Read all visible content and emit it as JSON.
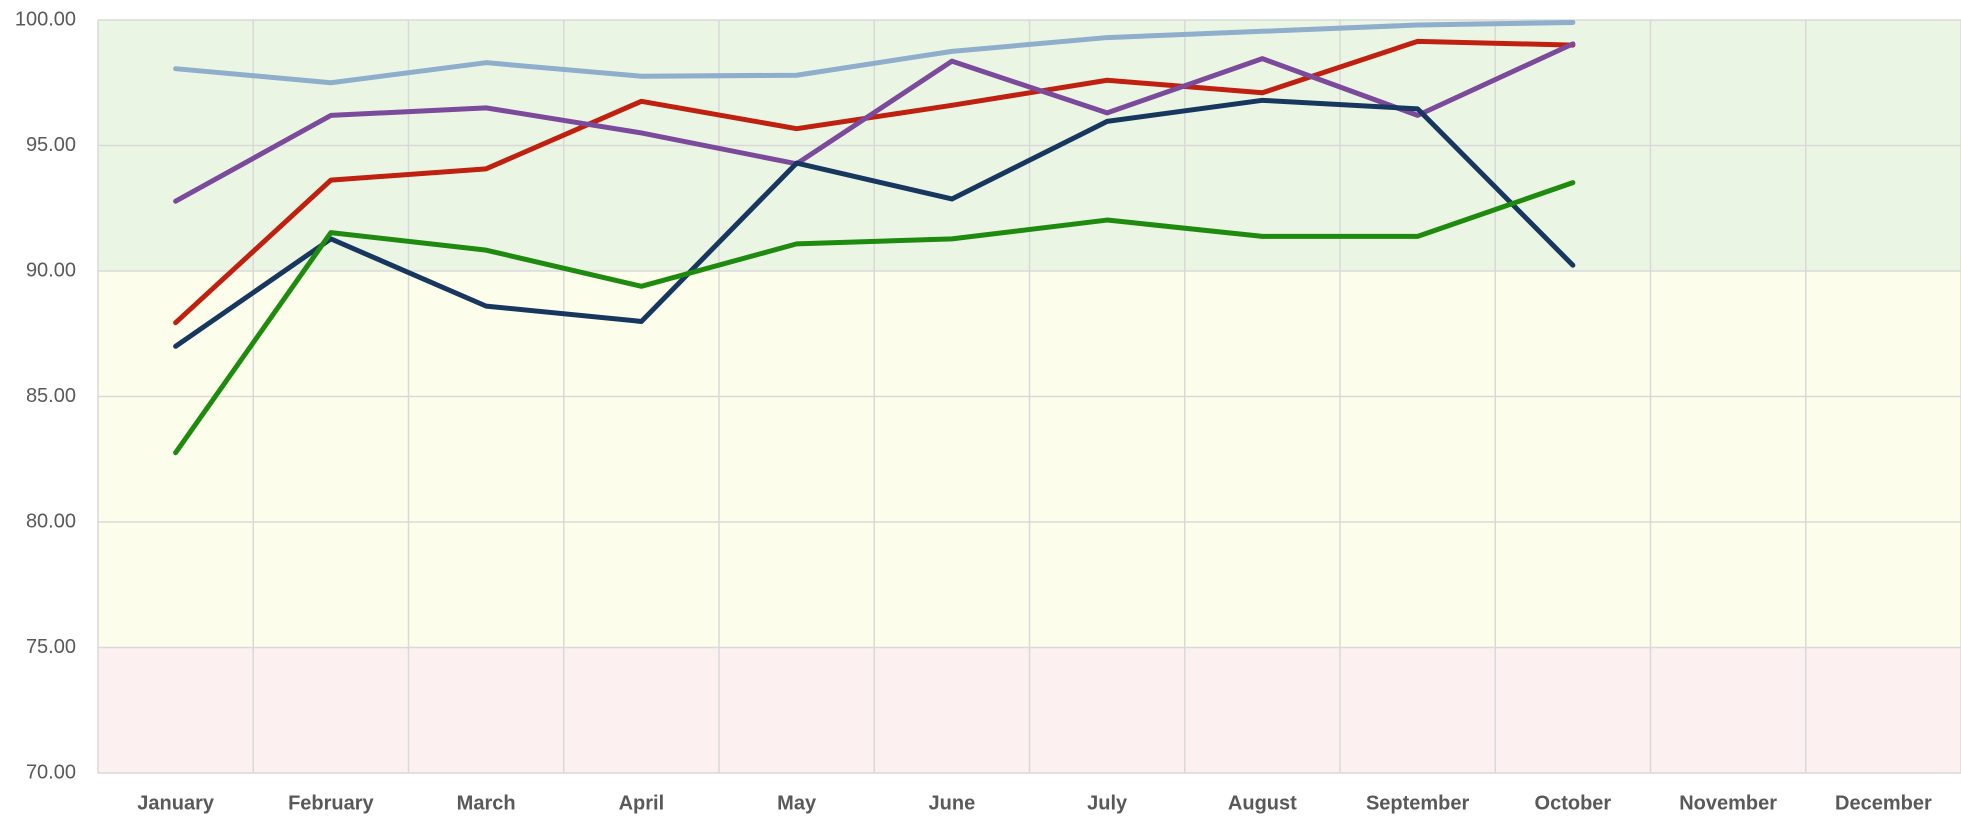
{
  "chart_data": {
    "type": "line",
    "categories": [
      "January",
      "February",
      "March",
      "April",
      "May",
      "June",
      "July",
      "August",
      "September",
      "October",
      "November",
      "December"
    ],
    "series": [
      {
        "color": "#8eaecb",
        "values": [
          98.06,
          97.5,
          98.3,
          97.76,
          97.8,
          98.75,
          99.3,
          99.55,
          99.8,
          99.9,
          null,
          null
        ]
      },
      {
        "color": "#c0200f",
        "values": [
          87.94,
          93.62,
          94.07,
          96.76,
          95.67,
          96.6,
          97.6,
          97.1,
          99.15,
          99.0,
          null,
          null
        ]
      },
      {
        "color": "#7b4a9a",
        "values": [
          92.78,
          96.2,
          96.5,
          95.5,
          94.27,
          98.36,
          96.3,
          98.46,
          96.2,
          99.05,
          null,
          null
        ]
      },
      {
        "color": "#17375e",
        "values": [
          87.0,
          91.28,
          88.6,
          87.99,
          94.3,
          92.87,
          95.96,
          96.8,
          96.46,
          90.23,
          null,
          null
        ]
      },
      {
        "color": "#1e8a0e",
        "values": [
          82.76,
          91.53,
          90.83,
          89.39,
          91.08,
          91.28,
          92.03,
          91.38,
          91.38,
          93.52,
          null,
          null
        ]
      }
    ],
    "ylim": [
      70,
      100
    ],
    "yticks": [
      {
        "value": 70,
        "label": "70.00"
      },
      {
        "value": 75,
        "label": "75.00"
      },
      {
        "value": 80,
        "label": "80.00"
      },
      {
        "value": 85,
        "label": "85.00"
      },
      {
        "value": 90,
        "label": "90.00"
      },
      {
        "value": 95,
        "label": "95.00"
      },
      {
        "value": 100,
        "label": "100.00"
      }
    ],
    "bands": [
      {
        "from": 90,
        "to": 100,
        "color": "#ebf5e3"
      },
      {
        "from": 75,
        "to": 90,
        "color": "#fdfdec"
      },
      {
        "from": 70,
        "to": 75,
        "color": "#fdf0f0"
      }
    ],
    "grid": true
  }
}
